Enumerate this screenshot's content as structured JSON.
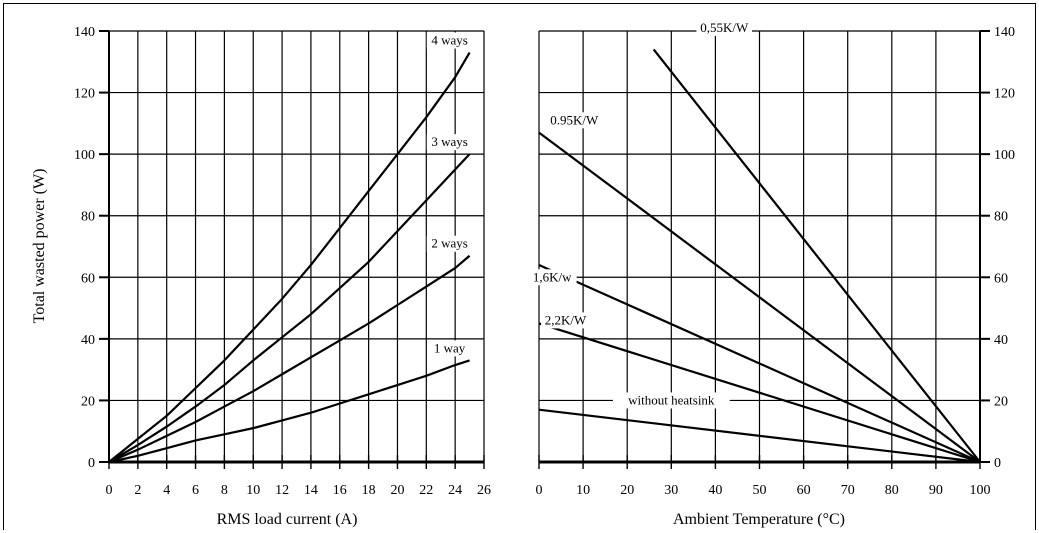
{
  "chart_data": [
    {
      "type": "line",
      "xlabel": "RMS load current (A)",
      "ylabel": "Total wasted power (W)",
      "xlim": [
        0,
        26
      ],
      "ylim": [
        0,
        140
      ],
      "x_ticks": [
        0,
        2,
        4,
        6,
        8,
        10,
        12,
        14,
        16,
        18,
        20,
        22,
        24,
        26
      ],
      "y_ticks": [
        0,
        20,
        40,
        60,
        80,
        100,
        120,
        140
      ],
      "grid": true,
      "series": [
        {
          "name": "1 way",
          "x": [
            0,
            2,
            4,
            6,
            8,
            10,
            12,
            14,
            16,
            18,
            20,
            22,
            24,
            25
          ],
          "y": [
            0,
            2,
            4.5,
            7,
            9,
            11,
            13.5,
            16,
            19,
            22,
            25,
            28,
            31.5,
            33
          ]
        },
        {
          "name": "2 ways",
          "x": [
            0,
            2,
            4,
            6,
            8,
            10,
            12,
            14,
            16,
            18,
            20,
            22,
            24,
            25
          ],
          "y": [
            0,
            4,
            8.5,
            13,
            18,
            23,
            28.5,
            34,
            39.5,
            45,
            51,
            57,
            63,
            67
          ]
        },
        {
          "name": "3 ways",
          "x": [
            0,
            2,
            4,
            6,
            8,
            10,
            12,
            14,
            16,
            18,
            20,
            22,
            24,
            25
          ],
          "y": [
            0,
            5.5,
            11.5,
            18,
            25,
            33,
            40.5,
            48,
            56.5,
            65,
            75,
            85,
            95,
            100
          ]
        },
        {
          "name": "4 ways",
          "x": [
            0,
            2,
            4,
            6,
            8,
            10,
            12,
            14,
            16,
            18,
            20,
            22,
            24,
            25
          ],
          "y": [
            0,
            7.5,
            15,
            24,
            33,
            43,
            53,
            64,
            76,
            88,
            100,
            112,
            125,
            133
          ]
        }
      ]
    },
    {
      "type": "line",
      "xlabel": "Ambient Temperature (°C)",
      "ylabel": "",
      "xlim": [
        0,
        100
      ],
      "ylim": [
        0,
        140
      ],
      "x_ticks": [
        0,
        10,
        20,
        30,
        40,
        50,
        60,
        70,
        80,
        90,
        100
      ],
      "y_ticks": [
        0,
        20,
        40,
        60,
        80,
        100,
        120,
        140
      ],
      "grid": true,
      "series": [
        {
          "name": "without heatsink",
          "x": [
            0,
            100
          ],
          "y": [
            17,
            0
          ]
        },
        {
          "name": "2,2K/W",
          "x": [
            0,
            100
          ],
          "y": [
            45,
            0
          ]
        },
        {
          "name": "1,6K/w",
          "x": [
            0,
            100
          ],
          "y": [
            64,
            0
          ]
        },
        {
          "name": "0.95K/W",
          "x": [
            0,
            100
          ],
          "y": [
            107,
            0
          ]
        },
        {
          "name": "0,55K/W",
          "x": [
            26,
            100
          ],
          "y": [
            134,
            0
          ]
        }
      ]
    }
  ]
}
